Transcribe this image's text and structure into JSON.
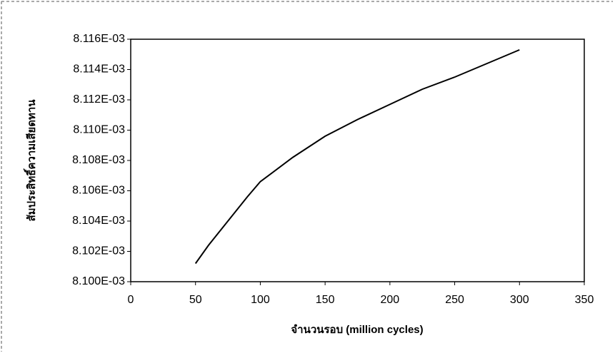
{
  "chart_data": {
    "type": "line",
    "x_label": "จำนวนรอบ (million cycles)",
    "y_label": "สัมประสิทธิ์ความเสียดทาน",
    "x": [
      50,
      60,
      75,
      90,
      100,
      125,
      150,
      175,
      200,
      225,
      250,
      275,
      300
    ],
    "series": [
      {
        "color": "#000000",
        "values": [
          0.0081012,
          0.0081024,
          0.008104,
          0.0081056,
          0.0081066,
          0.0081082,
          0.0081096,
          0.0081107,
          0.0081117,
          0.0081127,
          0.0081135,
          0.0081144,
          0.0081153
        ]
      }
    ],
    "xlim": [
      0,
      350
    ],
    "xticks": [
      0,
      50,
      100,
      150,
      200,
      250,
      300,
      350
    ],
    "ylim": [
      0.0081,
      0.008116
    ],
    "yticks": [
      {
        "value": 0.0081,
        "label": "8.100E-03"
      },
      {
        "value": 0.008102,
        "label": "8.102E-03"
      },
      {
        "value": 0.008104,
        "label": "8.104E-03"
      },
      {
        "value": 0.008106,
        "label": "8.106E-03"
      },
      {
        "value": 0.008108,
        "label": "8.108E-03"
      },
      {
        "value": 0.00811,
        "label": "8.110E-03"
      },
      {
        "value": 0.008112,
        "label": "8.112E-03"
      },
      {
        "value": 0.008114,
        "label": "8.114E-03"
      },
      {
        "value": 0.008116,
        "label": "8.116E-03"
      }
    ],
    "grid": false
  }
}
